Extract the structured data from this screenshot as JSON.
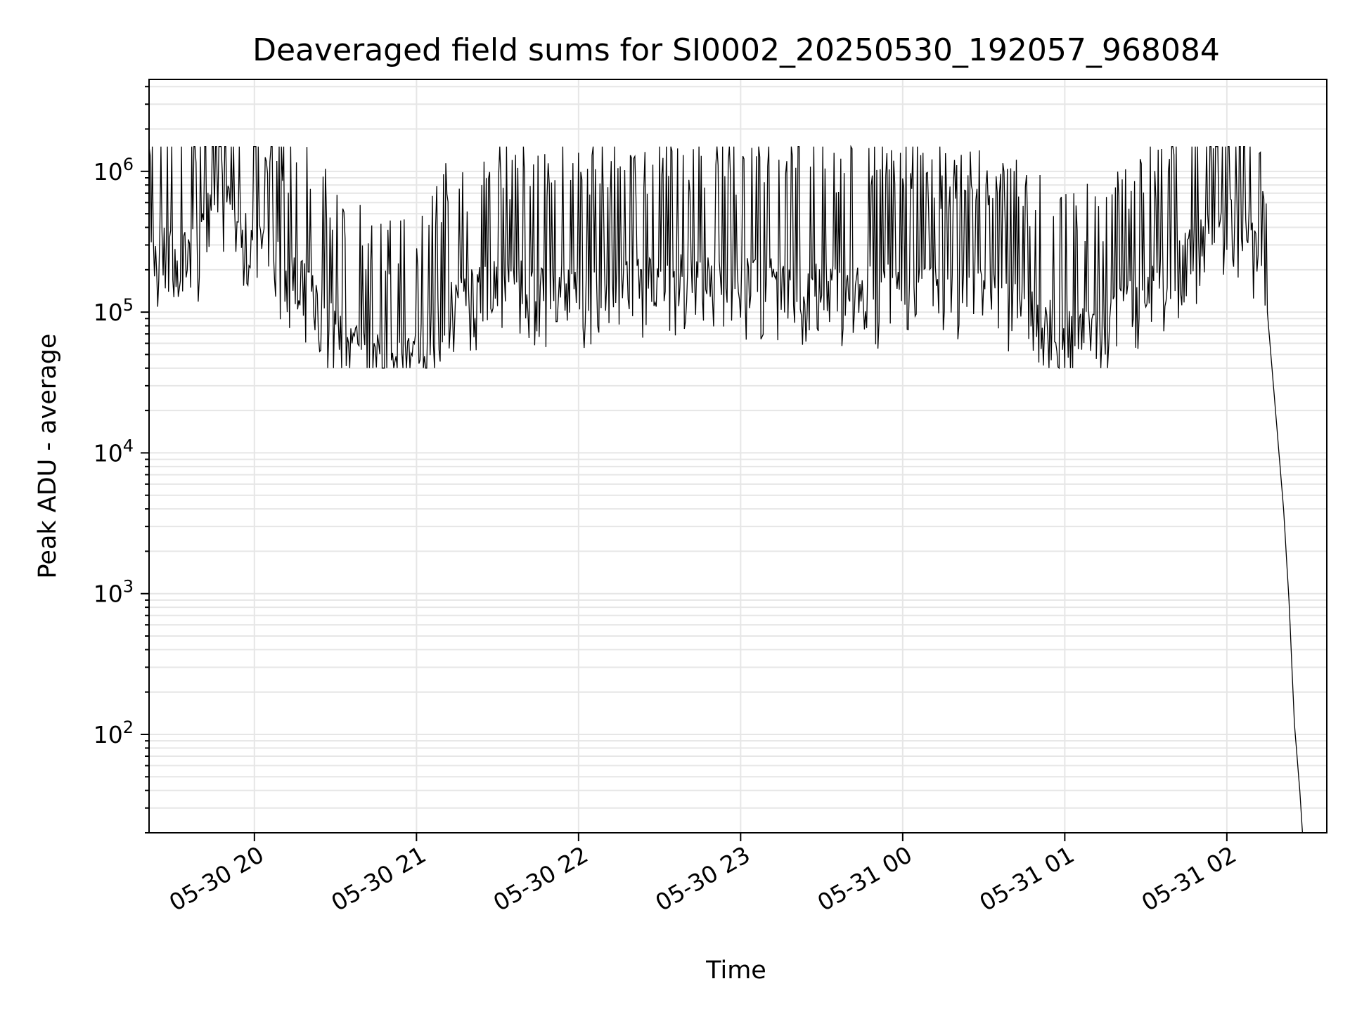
{
  "chart_data": {
    "type": "line",
    "title": "Deaveraged field sums for SI0002_20250530_192057_968084",
    "xlabel": "Time",
    "ylabel": "Peak ADU - average",
    "y_scale": "log",
    "ylim": [
      20,
      4500000
    ],
    "xlim": [
      "2025-05-30 19:21",
      "2025-05-31 02:37"
    ],
    "grid": true,
    "line_color": "#000000",
    "grid_color": "#e6e6e6",
    "x_ticks": [
      {
        "value": "2025-05-30 20:00",
        "label": "05-30 20"
      },
      {
        "value": "2025-05-30 21:00",
        "label": "05-30 21"
      },
      {
        "value": "2025-05-30 22:00",
        "label": "05-30 22"
      },
      {
        "value": "2025-05-30 23:00",
        "label": "05-30 23"
      },
      {
        "value": "2025-05-31 00:00",
        "label": "05-31 00"
      },
      {
        "value": "2025-05-31 01:00",
        "label": "05-31 01"
      },
      {
        "value": "2025-05-31 02:00",
        "label": "05-31 02"
      }
    ],
    "y_ticks": [
      {
        "value": 100,
        "base": "10",
        "exp": "2"
      },
      {
        "value": 1000,
        "base": "10",
        "exp": "3"
      },
      {
        "value": 10000,
        "base": "10",
        "exp": "4"
      },
      {
        "value": 100000,
        "base": "10",
        "exp": "5"
      },
      {
        "value": 1000000,
        "base": "10",
        "exp": "6"
      }
    ],
    "series": [
      {
        "x": [
          "2025-05-30 19:21",
          "2025-05-30 19:25",
          "2025-05-30 19:29",
          "2025-05-30 19:33",
          "2025-05-30 19:36",
          "2025-05-30 19:40",
          "2025-05-30 19:42",
          "2025-05-30 19:44",
          "2025-05-30 19:46",
          "2025-05-30 19:49",
          "2025-05-30 19:51",
          "2025-05-30 19:54",
          "2025-05-30 19:58",
          "2025-05-30 20:04",
          "2025-05-30 20:10",
          "2025-05-30 20:16",
          "2025-05-30 20:22",
          "2025-05-30 20:28",
          "2025-05-30 20:34",
          "2025-05-30 20:40",
          "2025-05-30 20:46",
          "2025-05-30 20:52",
          "2025-05-30 20:58",
          "2025-05-30 21:10",
          "2025-05-30 21:30",
          "2025-05-30 22:00",
          "2025-05-30 22:30",
          "2025-05-30 23:00",
          "2025-05-30 23:30",
          "2025-05-31 00:00",
          "2025-05-31 00:30",
          "2025-05-31 00:50",
          "2025-05-31 01:00",
          "2025-05-31 01:15",
          "2025-05-31 01:30",
          "2025-05-31 01:45",
          "2025-05-31 02:00",
          "2025-05-31 02:05",
          "2025-05-31 02:09",
          "2025-05-31 02:12",
          "2025-05-31 02:15",
          "2025-05-31 02:18",
          "2025-05-31 02:21",
          "2025-05-31 02:23",
          "2025-05-31 02:25",
          "2025-05-31 02:27",
          "2025-05-31 02:28"
        ],
        "y": [
          300000,
          350000,
          330000,
          360000,
          340000,
          330000,
          650000,
          800000,
          900000,
          850000,
          600000,
          450000,
          420000,
          330000,
          250000,
          210000,
          160000,
          110000,
          75000,
          65000,
          58000,
          55000,
          55000,
          140000,
          200000,
          180000,
          220000,
          210000,
          190000,
          180000,
          170000,
          120000,
          85000,
          100000,
          180000,
          320000,
          550000,
          550000,
          420000,
          290000,
          100000,
          20000,
          4000,
          900,
          120,
          40,
          20
        ]
      }
    ]
  }
}
